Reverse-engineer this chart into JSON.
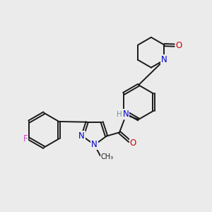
{
  "bg_color": "#ebebeb",
  "bond_color": "#1a1a1a",
  "nitrogen_color": "#0000cc",
  "oxygen_color": "#cc0000",
  "fluorine_color": "#cc44cc",
  "bond_width": 1.4,
  "dbo": 0.055,
  "figsize": [
    3.0,
    3.0
  ],
  "dpi": 100,
  "xlim": [
    0,
    10
  ],
  "ylim": [
    0,
    10
  ]
}
